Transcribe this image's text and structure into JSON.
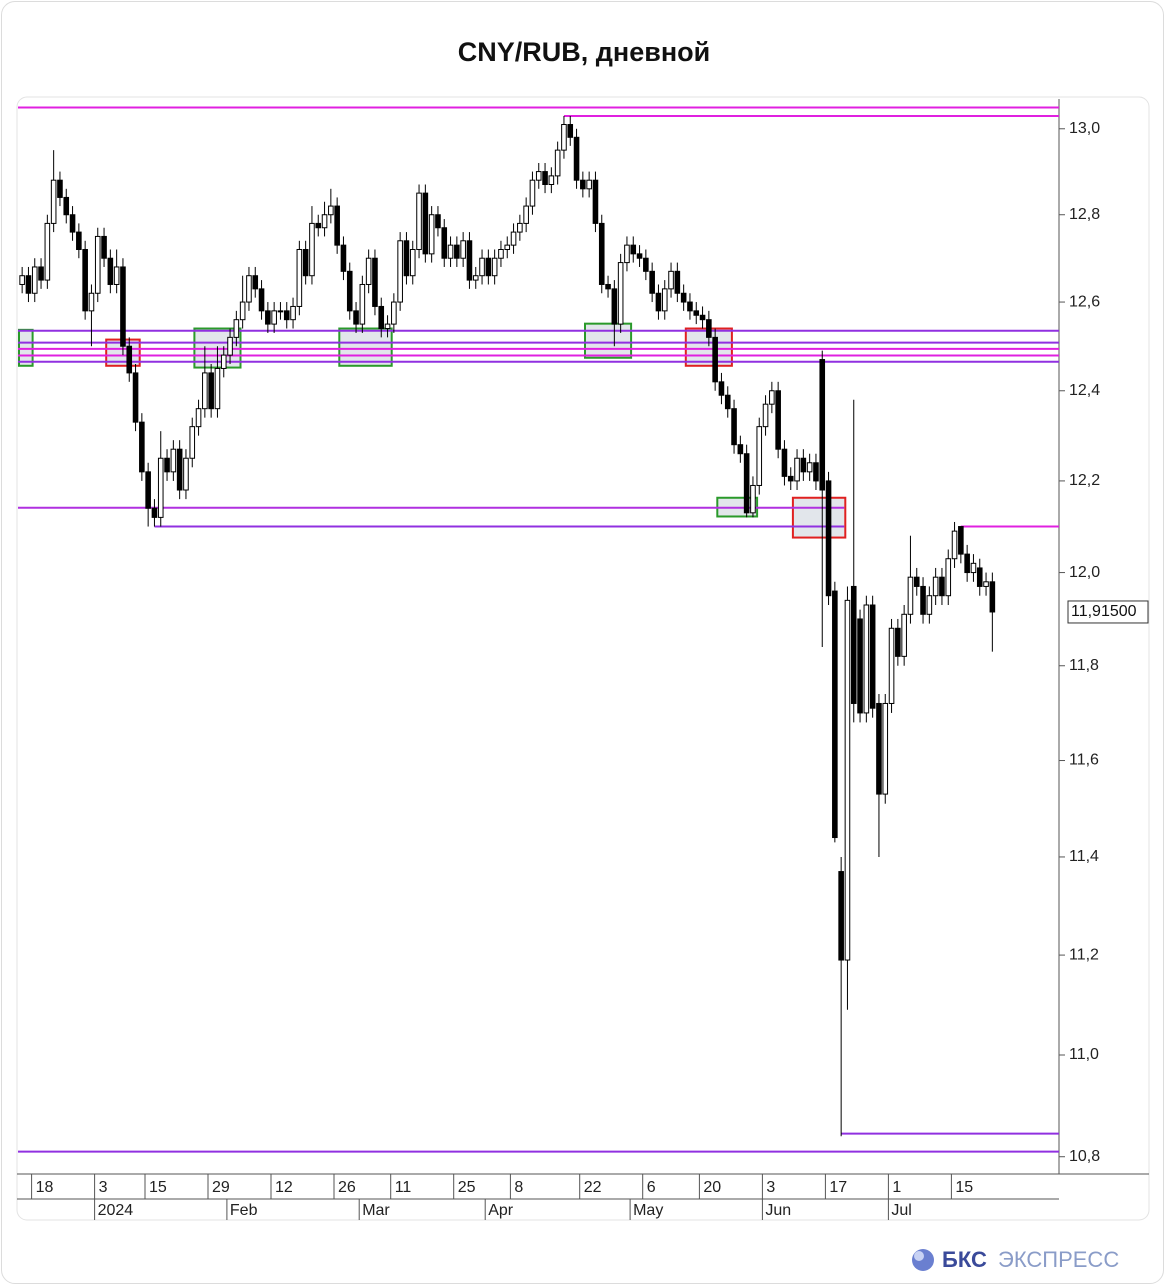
{
  "chart_data": {
    "type": "candlestick",
    "title": "CNY/RUB, дневной",
    "log_scale": true,
    "categories": [
      null,
      null,
      "18",
      null,
      null,
      null,
      null,
      null,
      null,
      null,
      null,
      null,
      "3",
      null,
      null,
      null,
      null,
      null,
      null,
      null,
      "15",
      null,
      null,
      null,
      null,
      null,
      null,
      null,
      null,
      null,
      "29",
      null,
      null,
      null,
      null,
      null,
      null,
      null,
      null,
      null,
      "12",
      null,
      null,
      null,
      null,
      null,
      null,
      null,
      null,
      null,
      "26",
      null,
      null,
      null,
      null,
      null,
      null,
      null,
      null,
      "11",
      null,
      null,
      null,
      null,
      null,
      null,
      null,
      null,
      null,
      "25",
      null,
      null,
      null,
      null,
      null,
      null,
      null,
      null,
      "8",
      null,
      null,
      null,
      null,
      null,
      null,
      null,
      null,
      null,
      null,
      "22",
      null,
      null,
      null,
      null,
      null,
      null,
      null,
      null,
      null,
      "6",
      null,
      null,
      null,
      null,
      null,
      null,
      null,
      null,
      "20",
      null,
      null,
      null,
      null,
      null,
      null,
      null,
      null,
      null,
      "3",
      null,
      null,
      null,
      null,
      null,
      null,
      null,
      null,
      null,
      "17",
      null,
      null,
      null,
      null,
      null,
      null,
      null,
      null,
      null,
      "1",
      null,
      null,
      null,
      null,
      null,
      null,
      null,
      null,
      null,
      "15",
      null,
      null,
      null,
      null,
      null,
      null
    ],
    "categories2": [
      null,
      null,
      null,
      null,
      null,
      null,
      null,
      null,
      null,
      null,
      null,
      null,
      "2024",
      null,
      null,
      null,
      null,
      null,
      null,
      null,
      null,
      null,
      null,
      null,
      null,
      null,
      null,
      null,
      null,
      null,
      null,
      null,
      null,
      "Feb",
      null,
      null,
      null,
      null,
      null,
      null,
      null,
      null,
      null,
      null,
      null,
      null,
      null,
      null,
      null,
      null,
      null,
      null,
      null,
      null,
      "Mar",
      null,
      null,
      null,
      null,
      null,
      null,
      null,
      null,
      null,
      null,
      null,
      null,
      null,
      null,
      null,
      null,
      null,
      null,
      null,
      "Apr",
      null,
      null,
      null,
      null,
      null,
      null,
      null,
      null,
      null,
      null,
      null,
      null,
      null,
      null,
      null,
      null,
      null,
      null,
      null,
      null,
      null,
      null,
      "May",
      null,
      null,
      null,
      null,
      null,
      null,
      null,
      null,
      null,
      null,
      null,
      null,
      null,
      null,
      null,
      null,
      null,
      null,
      null,
      null,
      "Jun",
      null,
      null,
      null,
      null,
      null,
      null,
      null,
      null,
      null,
      null,
      null,
      null,
      null,
      null,
      null,
      null,
      null,
      null,
      null,
      "Jul",
      null,
      null,
      null,
      null,
      null,
      null,
      null,
      null,
      null,
      null,
      null,
      null,
      null,
      null,
      null,
      null,
      null
    ],
    "open": [
      12.64,
      12.66,
      12.62,
      12.68,
      12.65,
      12.78,
      12.88,
      12.84,
      12.8,
      12.76,
      12.72,
      12.58,
      12.62,
      12.75,
      12.7,
      12.64,
      12.68,
      12.5,
      12.44,
      12.33,
      12.22,
      12.14,
      12.12,
      12.25,
      12.22,
      12.27,
      12.18,
      12.25,
      12.32,
      12.36,
      12.44,
      12.36,
      12.45,
      12.48,
      12.52,
      12.56,
      12.6,
      12.66,
      12.63,
      12.58,
      12.55,
      12.58,
      12.58,
      12.56,
      12.59,
      12.72,
      12.66,
      12.78,
      12.77,
      12.8,
      12.82,
      12.73,
      12.67,
      12.58,
      12.55,
      12.64,
      12.7,
      12.59,
      12.54,
      12.55,
      12.6,
      12.74,
      12.66,
      12.72,
      12.85,
      12.71,
      12.8,
      12.77,
      12.7,
      12.73,
      12.7,
      12.74,
      12.65,
      12.66,
      12.7,
      12.66,
      12.7,
      12.72,
      12.73,
      12.76,
      12.78,
      12.82,
      12.88,
      12.9,
      12.87,
      12.89,
      12.95,
      13.01,
      12.98,
      12.88,
      12.86,
      12.88,
      12.78,
      12.64,
      12.63,
      12.55,
      12.69,
      12.73,
      12.71,
      12.7,
      12.67,
      12.62,
      12.58,
      12.63,
      12.67,
      12.62,
      12.6,
      12.58,
      12.57,
      12.56,
      12.52,
      12.42,
      12.39,
      12.36,
      12.28,
      12.26,
      12.13,
      12.19,
      12.32,
      12.37,
      12.4,
      12.27,
      12.21,
      12.2,
      12.25,
      12.22,
      12.24,
      12.47,
      12.2,
      11.96,
      11.37,
      11.19,
      11.97,
      11.9,
      11.7,
      11.93,
      11.72,
      11.53,
      11.72,
      11.88,
      11.82,
      11.91,
      11.99,
      11.97,
      11.91,
      11.95,
      11.99,
      11.95,
      12.03,
      12.1,
      12.04,
      12.0,
      12.01,
      11.97,
      11.98
    ],
    "high": [
      12.68,
      12.68,
      12.7,
      12.7,
      12.8,
      12.95,
      12.9,
      12.86,
      12.82,
      12.78,
      12.74,
      12.64,
      12.77,
      12.77,
      12.72,
      12.72,
      12.7,
      12.52,
      12.46,
      12.35,
      12.24,
      12.16,
      12.31,
      12.27,
      12.29,
      12.29,
      12.27,
      12.34,
      12.38,
      12.5,
      12.46,
      12.5,
      12.5,
      12.54,
      12.58,
      12.66,
      12.68,
      12.68,
      12.65,
      12.6,
      12.6,
      12.6,
      12.6,
      12.61,
      12.74,
      12.74,
      12.82,
      12.8,
      12.83,
      12.86,
      12.84,
      12.75,
      12.69,
      12.6,
      12.66,
      12.72,
      12.72,
      12.61,
      12.57,
      12.62,
      12.76,
      12.76,
      12.74,
      12.87,
      12.87,
      12.82,
      12.82,
      12.79,
      12.75,
      12.75,
      12.76,
      12.76,
      12.68,
      12.72,
      12.72,
      12.72,
      12.74,
      12.75,
      12.78,
      12.8,
      12.84,
      12.9,
      12.92,
      12.92,
      12.91,
      12.97,
      13.03,
      13.03,
      13.0,
      12.9,
      12.9,
      12.9,
      12.8,
      12.66,
      12.65,
      12.71,
      12.75,
      12.75,
      12.73,
      12.72,
      12.69,
      12.64,
      12.65,
      12.69,
      12.69,
      12.64,
      12.62,
      12.6,
      12.59,
      12.58,
      12.54,
      12.44,
      12.41,
      12.38,
      12.3,
      12.28,
      12.21,
      12.34,
      12.39,
      12.42,
      12.42,
      12.29,
      12.23,
      12.27,
      12.27,
      12.26,
      12.26,
      12.49,
      12.22,
      11.98,
      11.4,
      11.97,
      12.38,
      11.92,
      11.95,
      11.95,
      11.74,
      11.74,
      11.9,
      11.9,
      11.93,
      12.08,
      12.01,
      11.99,
      11.97,
      12.01,
      12.01,
      12.05,
      12.11,
      12.1,
      12.06,
      12.04,
      12.03,
      12.0,
      12.0
    ],
    "low": [
      12.62,
      12.6,
      12.6,
      12.63,
      12.63,
      12.76,
      12.82,
      12.78,
      12.74,
      12.7,
      12.56,
      12.5,
      12.6,
      12.68,
      12.62,
      12.62,
      12.48,
      12.42,
      12.31,
      12.2,
      12.1,
      12.1,
      12.1,
      12.2,
      12.2,
      12.16,
      12.16,
      12.23,
      12.3,
      12.34,
      12.34,
      12.34,
      12.43,
      12.46,
      12.5,
      12.54,
      12.58,
      12.61,
      12.56,
      12.53,
      12.53,
      12.56,
      12.54,
      12.54,
      12.57,
      12.64,
      12.64,
      12.75,
      12.75,
      12.78,
      12.71,
      12.65,
      12.56,
      12.53,
      12.53,
      12.62,
      12.57,
      12.52,
      12.52,
      12.53,
      12.58,
      12.64,
      12.64,
      12.7,
      12.69,
      12.69,
      12.75,
      12.68,
      12.68,
      12.68,
      12.68,
      12.63,
      12.63,
      12.64,
      12.64,
      12.64,
      12.68,
      12.7,
      12.71,
      12.74,
      12.76,
      12.8,
      12.86,
      12.85,
      12.85,
      12.87,
      12.93,
      12.96,
      12.86,
      12.84,
      12.84,
      12.76,
      12.62,
      12.61,
      12.5,
      12.53,
      12.67,
      12.69,
      12.68,
      12.65,
      12.6,
      12.56,
      12.56,
      12.61,
      12.6,
      12.58,
      12.56,
      12.55,
      12.54,
      12.5,
      12.4,
      12.37,
      12.34,
      12.26,
      12.24,
      12.12,
      12.12,
      12.17,
      12.3,
      12.35,
      12.25,
      12.19,
      12.18,
      12.18,
      12.2,
      12.2,
      12.18,
      11.84,
      11.93,
      11.43,
      10.84,
      11.09,
      11.68,
      11.68,
      11.68,
      11.69,
      11.4,
      11.51,
      11.7,
      11.8,
      11.8,
      11.89,
      11.95,
      11.89,
      11.89,
      11.93,
      11.93,
      11.93,
      12.01,
      12.02,
      11.98,
      11.98,
      11.95,
      11.95,
      11.83
    ],
    "close": [
      12.66,
      12.62,
      12.68,
      12.65,
      12.78,
      12.88,
      12.84,
      12.8,
      12.76,
      12.72,
      12.58,
      12.62,
      12.75,
      12.7,
      12.64,
      12.68,
      12.5,
      12.44,
      12.33,
      12.22,
      12.14,
      12.12,
      12.25,
      12.22,
      12.27,
      12.18,
      12.25,
      12.32,
      12.36,
      12.44,
      12.36,
      12.45,
      12.48,
      12.52,
      12.56,
      12.6,
      12.66,
      12.63,
      12.58,
      12.55,
      12.58,
      12.58,
      12.56,
      12.59,
      12.72,
      12.66,
      12.78,
      12.77,
      12.8,
      12.82,
      12.73,
      12.67,
      12.58,
      12.55,
      12.64,
      12.7,
      12.59,
      12.54,
      12.55,
      12.6,
      12.74,
      12.66,
      12.72,
      12.85,
      12.71,
      12.8,
      12.77,
      12.7,
      12.73,
      12.7,
      12.74,
      12.65,
      12.66,
      12.7,
      12.66,
      12.7,
      12.72,
      12.73,
      12.76,
      12.78,
      12.82,
      12.88,
      12.9,
      12.87,
      12.89,
      12.95,
      13.01,
      12.98,
      12.88,
      12.86,
      12.88,
      12.78,
      12.64,
      12.63,
      12.55,
      12.69,
      12.73,
      12.71,
      12.7,
      12.67,
      12.62,
      12.58,
      12.63,
      12.67,
      12.62,
      12.6,
      12.58,
      12.57,
      12.56,
      12.52,
      12.42,
      12.39,
      12.36,
      12.28,
      12.26,
      12.13,
      12.19,
      12.32,
      12.37,
      12.4,
      12.27,
      12.21,
      12.2,
      12.25,
      12.22,
      12.24,
      12.2,
      12.18,
      11.95,
      11.44,
      11.19,
      11.94,
      11.72,
      11.7,
      11.93,
      11.71,
      11.53,
      11.72,
      11.88,
      11.82,
      11.91,
      11.99,
      11.97,
      11.91,
      11.95,
      11.99,
      11.95,
      12.03,
      12.09,
      12.04,
      12.0,
      12.02,
      11.97,
      11.98,
      11.915
    ],
    "up_color": "#ffffff",
    "down_color": "#000000",
    "ylim": [
      10.78,
      13.07
    ],
    "yticks": [
      {
        "value": 10.8,
        "label": "10,8"
      },
      {
        "value": 11.0,
        "label": "11,0"
      },
      {
        "value": 11.2,
        "label": "11,2"
      },
      {
        "value": 11.4,
        "label": "11,4"
      },
      {
        "value": 11.6,
        "label": "11,6"
      },
      {
        "value": 11.8,
        "label": "11,8"
      },
      {
        "value": 12.0,
        "label": "12,0"
      },
      {
        "value": 12.2,
        "label": "12,2"
      },
      {
        "value": 12.4,
        "label": "12,4"
      },
      {
        "value": 12.6,
        "label": "12,6"
      },
      {
        "value": 12.8,
        "label": "12,8"
      },
      {
        "value": 13.0,
        "label": "13,0"
      }
    ],
    "last_price": {
      "value": 11.915,
      "label": "11,91500"
    },
    "levels": [
      {
        "value": 13.05,
        "color": "#e020e0",
        "start": 0
      },
      {
        "value": 13.03,
        "color": "#e020e0",
        "start": 86
      },
      {
        "value": 12.535,
        "color": "#9030e0",
        "start": 0
      },
      {
        "value": 12.508,
        "color": "#9030e0",
        "start": 0
      },
      {
        "value": 12.494,
        "color": "#e020e0",
        "start": 0
      },
      {
        "value": 12.479,
        "color": "#e020e0",
        "start": 0
      },
      {
        "value": 12.465,
        "color": "#9030e0",
        "start": 0
      },
      {
        "value": 12.141,
        "color": "#b030e0",
        "start": 0,
        "end": 130
      },
      {
        "value": 12.1,
        "color": "#9030e0",
        "start": 21,
        "end": 130
      },
      {
        "value": 12.1,
        "color": "#e020e0",
        "start": 149
      },
      {
        "value": 10.845,
        "color": "#9030e0",
        "start": 130
      },
      {
        "value": 10.81,
        "color": "#9030e0",
        "start": 0
      }
    ],
    "zones": [
      {
        "start": 0,
        "end": 1,
        "low": 12.456,
        "high": 12.537,
        "color": "#2a9a2a"
      },
      {
        "start": 14,
        "end": 18,
        "low": 12.456,
        "high": 12.515,
        "color": "#e02020"
      },
      {
        "start": 28,
        "end": 34,
        "low": 12.452,
        "high": 12.54,
        "color": "#2a9a2a"
      },
      {
        "start": 51,
        "end": 58,
        "low": 12.456,
        "high": 12.54,
        "color": "#2a9a2a"
      },
      {
        "start": 90,
        "end": 96,
        "low": 12.474,
        "high": 12.551,
        "color": "#2a9a2a"
      },
      {
        "start": 106,
        "end": 112,
        "low": 12.456,
        "high": 12.54,
        "color": "#e02020"
      },
      {
        "start": 111,
        "end": 116,
        "low": 12.122,
        "high": 12.163,
        "color": "#2a9a2a"
      },
      {
        "start": 123,
        "end": 130,
        "low": 12.076,
        "high": 12.163,
        "color": "#e02020"
      }
    ]
  },
  "brand": {
    "bold": "БКС",
    "light": "ЭКСПРЕСС"
  }
}
